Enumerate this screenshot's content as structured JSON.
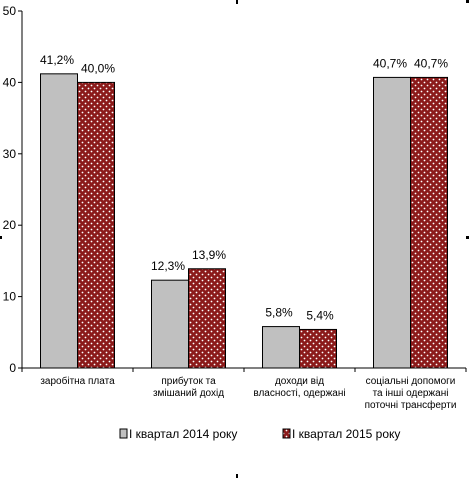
{
  "chart_data": {
    "type": "bar",
    "categories": [
      [
        "заробітна плата"
      ],
      [
        "прибуток та",
        "змішаний дохід"
      ],
      [
        "доходи від",
        "власності, одержані"
      ],
      [
        "соціальні допомоги",
        "та інші одержані",
        "поточні трансферти"
      ]
    ],
    "series": [
      {
        "name": "І квартал 2014 року",
        "values": [
          41.2,
          12.3,
          5.8,
          40.7
        ],
        "labels": [
          "41,2%",
          "12,3%",
          "5,8%",
          "40,7%"
        ],
        "color": "#c0c0c0",
        "pattern": "solid"
      },
      {
        "name": "І квартал 2015 року",
        "values": [
          40.0,
          13.9,
          5.4,
          40.7
        ],
        "labels": [
          "40,0%",
          "13,9%",
          "5,4%",
          "40,7%"
        ],
        "color": "#8b1a1a",
        "pattern": "white-dots"
      }
    ],
    "yticks": [
      "0",
      "10",
      "20",
      "30",
      "40",
      "50"
    ],
    "ylim": [
      0,
      50
    ],
    "grid": false,
    "legend_position": "bottom"
  }
}
